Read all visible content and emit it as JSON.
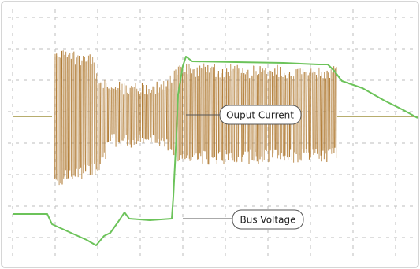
{
  "chart_data": {
    "type": "line",
    "title": "",
    "xlabel": "",
    "ylabel": "",
    "grid": true,
    "annotations": [
      {
        "id": "current",
        "text": "Ouput Current"
      },
      {
        "id": "voltage",
        "text": "Bus Voltage"
      }
    ],
    "series": [
      {
        "name": "Ouput Current",
        "color": "#b07a32",
        "style": "switching-burst"
      },
      {
        "name": "Bus Voltage",
        "color": "#6cc35a",
        "style": "trace"
      }
    ]
  },
  "colors": {
    "background": "#ffffff",
    "border": "#c8c8c8",
    "grid": "#bdbdbd",
    "current": "#b07a32",
    "voltage": "#6cc35a",
    "baseline": "#b7ad6e"
  }
}
